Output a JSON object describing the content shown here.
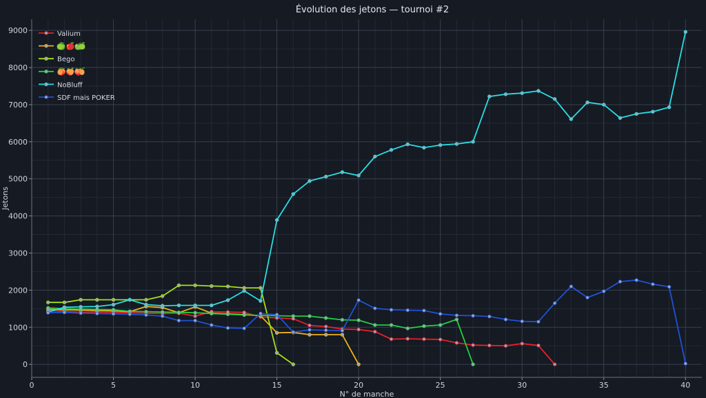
{
  "chart_data": {
    "type": "line",
    "title": "Évolution des jetons — tournoi #2",
    "xlabel": "N° de manche",
    "ylabel": "Jetons",
    "xlim": [
      0,
      41
    ],
    "ylim": [
      -350,
      9300
    ],
    "xticks": [
      0,
      5,
      10,
      15,
      20,
      25,
      30,
      35,
      40
    ],
    "yticks": [
      0,
      1000,
      2000,
      3000,
      4000,
      5000,
      6000,
      7000,
      8000,
      9000
    ],
    "grid": true,
    "legend_position": "top-left",
    "series": [
      {
        "name": "Valium",
        "color": "#e8202a",
        "x": [
          1,
          2,
          3,
          4,
          5,
          6,
          7,
          8,
          9,
          10,
          11,
          12,
          13,
          14,
          15,
          16,
          17,
          18,
          19,
          20,
          21,
          22,
          23,
          24,
          25,
          26,
          27,
          28,
          29,
          30,
          31,
          32
        ],
        "y": [
          1450,
          1430,
          1400,
          1410,
          1400,
          1390,
          1380,
          1370,
          1380,
          1300,
          1420,
          1410,
          1400,
          1280,
          1250,
          1230,
          1050,
          1020,
          950,
          940,
          880,
          680,
          690,
          680,
          670,
          580,
          520,
          510,
          500,
          560,
          510,
          0
        ]
      },
      {
        "name": "🍏🍎🍏",
        "icons": [
          "green-apple-icon",
          "red-apple-icon",
          "green-apple-icon"
        ],
        "color": "#f0b21a",
        "x": [
          1,
          2,
          3,
          4,
          5,
          6,
          7,
          8,
          9,
          10,
          11,
          12,
          13,
          14,
          15,
          16,
          17,
          18,
          19,
          20
        ],
        "y": [
          1480,
          1470,
          1460,
          1450,
          1440,
          1420,
          1560,
          1530,
          1390,
          1550,
          1380,
          1360,
          1340,
          1310,
          850,
          860,
          800,
          800,
          800,
          0
        ]
      },
      {
        "name": "Bego",
        "color": "#a8e016",
        "x": [
          1,
          2,
          3,
          4,
          5,
          6,
          7,
          8,
          9,
          10,
          11,
          12,
          13,
          14,
          15,
          16
        ],
        "y": [
          1670,
          1670,
          1740,
          1740,
          1740,
          1740,
          1740,
          1840,
          2130,
          2130,
          2110,
          2100,
          2060,
          2060,
          310,
          0
        ]
      },
      {
        "name": "🍑🍑🍑",
        "icons": [
          "peach-icon",
          "peach-icon",
          "peach-icon"
        ],
        "color": "#22d042",
        "x": [
          1,
          2,
          3,
          4,
          5,
          6,
          7,
          8,
          9,
          10,
          11,
          12,
          13,
          14,
          15,
          16,
          17,
          18,
          19,
          20,
          21,
          22,
          23,
          24,
          25,
          26,
          27
        ],
        "y": [
          1520,
          1500,
          1490,
          1480,
          1470,
          1430,
          1420,
          1410,
          1400,
          1390,
          1370,
          1350,
          1330,
          1320,
          1310,
          1300,
          1300,
          1250,
          1200,
          1190,
          1060,
          1060,
          970,
          1030,
          1060,
          1210,
          0
        ]
      },
      {
        "name": "NoBluff",
        "color": "#29dfe6",
        "x": [
          1,
          2,
          3,
          4,
          5,
          6,
          7,
          8,
          9,
          10,
          11,
          12,
          13,
          14,
          15,
          16,
          17,
          18,
          19,
          20,
          21,
          22,
          23,
          24,
          25,
          26,
          27,
          28,
          29,
          30,
          31,
          32,
          33,
          34,
          35,
          36,
          37,
          38,
          39,
          40
        ],
        "y": [
          1410,
          1540,
          1550,
          1560,
          1610,
          1740,
          1610,
          1580,
          1590,
          1590,
          1590,
          1730,
          1980,
          1710,
          3890,
          4590,
          4940,
          5060,
          5180,
          5090,
          5600,
          5780,
          5930,
          5840,
          5910,
          5940,
          6000,
          7220,
          7280,
          7310,
          7370,
          7150,
          6610,
          7060,
          7000,
          6640,
          6750,
          6810,
          6930,
          8960
        ]
      },
      {
        "name": "SDF mais POKER",
        "color": "#1f52d8",
        "x": [
          1,
          2,
          3,
          4,
          5,
          6,
          7,
          8,
          9,
          10,
          11,
          12,
          13,
          14,
          15,
          16,
          17,
          18,
          19,
          20,
          21,
          22,
          23,
          24,
          25,
          26,
          27,
          28,
          29,
          30,
          31,
          32,
          33,
          34,
          35,
          36,
          37,
          38,
          39,
          40
        ],
        "y": [
          1390,
          1400,
          1380,
          1370,
          1360,
          1350,
          1330,
          1300,
          1180,
          1180,
          1060,
          980,
          970,
          1370,
          1340,
          870,
          930,
          920,
          910,
          1730,
          1510,
          1470,
          1460,
          1450,
          1360,
          1320,
          1310,
          1290,
          1210,
          1160,
          1150,
          1650,
          2100,
          1800,
          1970,
          2230,
          2270,
          2160,
          2090,
          20
        ]
      }
    ]
  }
}
